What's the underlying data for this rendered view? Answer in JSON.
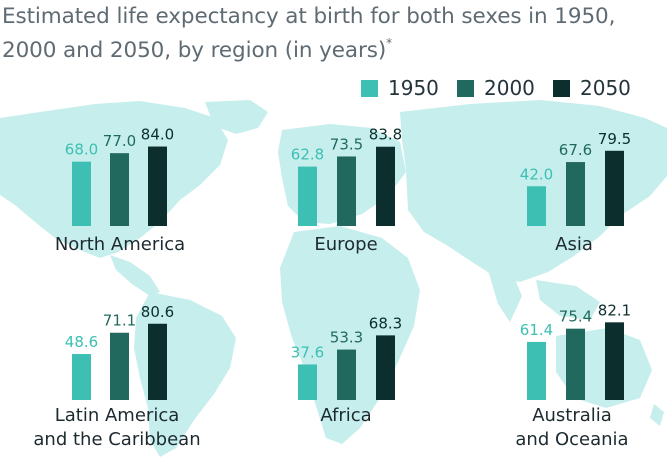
{
  "title": "Estimated life expectancy at birth for both sexes in 1950, 2000 and 2050, by region (in years)",
  "title_marker": "*",
  "colors": {
    "s1950": "#3dc0b3",
    "s2000": "#21695f",
    "s2050": "#0c2e2c",
    "map": "#c6eeec",
    "text": "#1d2a30",
    "label1950": "#3dc0b3",
    "label2000": "#21695f",
    "label2050": "#0c2e2c"
  },
  "legend": [
    {
      "label": "1950",
      "color": "#3dc0b3"
    },
    {
      "label": "2000",
      "color": "#21695f"
    },
    {
      "label": "2050",
      "color": "#0c2e2c"
    }
  ],
  "chart_data": {
    "type": "bar",
    "title": "Estimated life expectancy at birth for both sexes in 1950, 2000 and 2050, by region (in years)",
    "series_names": [
      "1950",
      "2000",
      "2050"
    ],
    "ylim": [
      0,
      90
    ],
    "groups": [
      {
        "region": "North America",
        "values": [
          "68.0",
          "77.0",
          "84.0"
        ]
      },
      {
        "region": "Europe",
        "values": [
          "62.8",
          "73.5",
          "83.8"
        ]
      },
      {
        "region": "Asia",
        "values": [
          "42.0",
          "67.6",
          "79.5"
        ]
      },
      {
        "region": "Latin America\nand the Caribbean",
        "values": [
          "48.6",
          "71.1",
          "80.6"
        ]
      },
      {
        "region": "Africa",
        "values": [
          "37.6",
          "53.3",
          "68.3"
        ]
      },
      {
        "region": "Australia\nand Oceania",
        "values": [
          "61.4",
          "75.4",
          "82.1"
        ]
      }
    ]
  }
}
